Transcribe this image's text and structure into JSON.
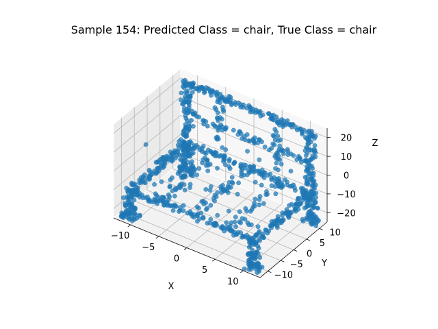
{
  "chart_data": {
    "type": "scatter",
    "projection": "3d",
    "title": "Sample 154: Predicted Class = chair, True Class = chair",
    "xlabel": "X",
    "ylabel": "Y",
    "zlabel": "Z",
    "xlim": [
      -13,
      13
    ],
    "ylim": [
      -13,
      13
    ],
    "zlim": [
      -25,
      25
    ],
    "x_ticks": [
      -10,
      -5,
      0,
      5,
      10
    ],
    "y_ticks": [
      -10,
      -5,
      0,
      5,
      10
    ],
    "z_ticks": [
      -20,
      -10,
      0,
      10,
      20
    ],
    "x_tick_labels": [
      "−10",
      "−5",
      "0",
      "5",
      "10"
    ],
    "y_tick_labels": [
      "−10",
      "−5",
      "0",
      "5",
      "10"
    ],
    "z_tick_labels": [
      "−20",
      "−10",
      "0",
      "10",
      "20"
    ],
    "grid": true,
    "series": [
      {
        "color": "#1f77b4",
        "marker": "circle",
        "structure": "chair point cloud: seat frame, backrest frame, four legs"
      }
    ]
  }
}
